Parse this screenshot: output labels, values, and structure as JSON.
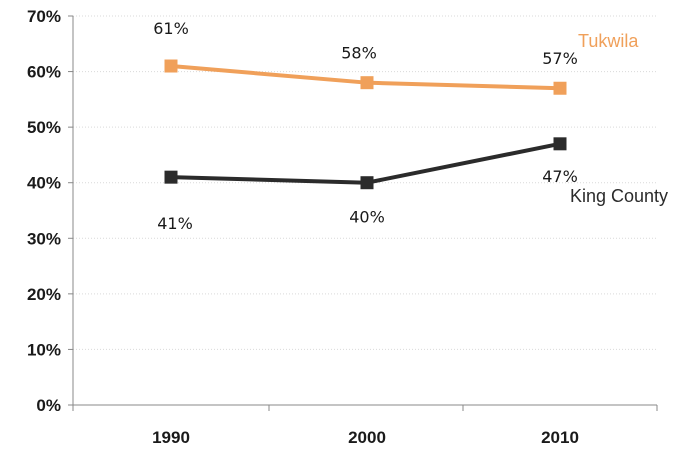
{
  "chart_data": {
    "type": "line",
    "title": "",
    "xlabel": "",
    "ylabel": "",
    "categories": [
      "1990",
      "2000",
      "2010"
    ],
    "ylim": [
      0,
      70
    ],
    "y_ticks": [
      "0%",
      "10%",
      "20%",
      "30%",
      "40%",
      "50%",
      "60%",
      "70%"
    ],
    "grid": true,
    "legend": "none",
    "series": [
      {
        "name": "Tukwila",
        "values": [
          61,
          58,
          57
        ],
        "data_labels": [
          "61%",
          "58%",
          "57%"
        ],
        "color": "#f0a05a",
        "marker": "square"
      },
      {
        "name": "King County",
        "values": [
          41,
          40,
          47
        ],
        "data_labels": [
          "41%",
          "40%",
          "47%"
        ],
        "color": "#2b2b2b",
        "marker": "square"
      }
    ]
  }
}
